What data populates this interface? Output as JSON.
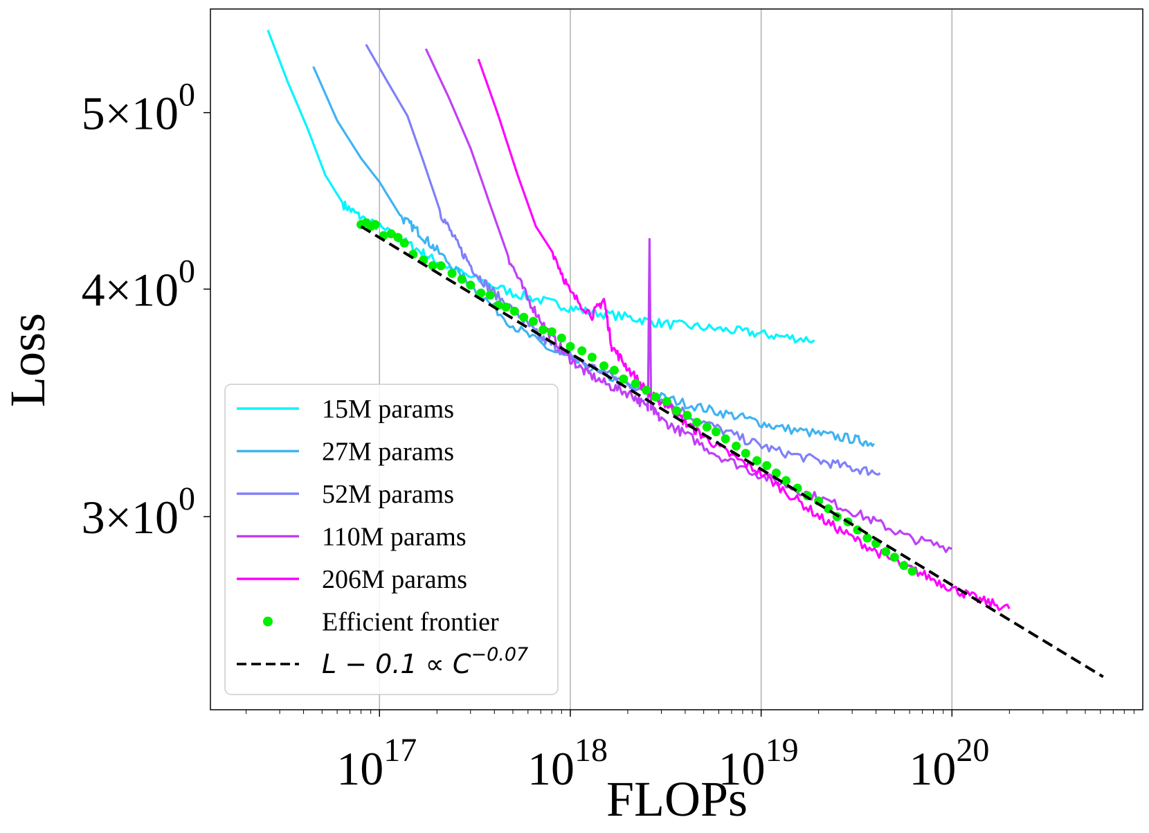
{
  "chart_data": {
    "type": "line",
    "xlabel": "FLOPs",
    "ylabel": "Loss",
    "x_scale": "log",
    "y_scale": "log",
    "xlim": [
      1.3e+16,
      1e+21
    ],
    "ylim": [
      2.35,
      5.7
    ],
    "grid": "vertical major",
    "legend_position": "lower-left",
    "x_ticks": [
      {
        "value": 1e+17,
        "base": "10",
        "exp": "17"
      },
      {
        "value": 1e+18,
        "base": "10",
        "exp": "18"
      },
      {
        "value": 1e+19,
        "base": "10",
        "exp": "19"
      },
      {
        "value": 1e+20,
        "base": "10",
        "exp": "20"
      }
    ],
    "y_ticks": [
      {
        "value": 5,
        "mantissa": "5",
        "times": "×",
        "base": "10",
        "exp": "0"
      },
      {
        "value": 4,
        "mantissa": "4",
        "times": "×",
        "base": "10",
        "exp": "0"
      },
      {
        "value": 3,
        "mantissa": "3",
        "times": "×",
        "base": "10",
        "exp": "0"
      }
    ],
    "series": [
      {
        "name": "15M params",
        "color": "#00f5ff",
        "x": [
          2.6e+16,
          3.3e+16,
          4.2e+16,
          5.2e+16,
          6.5e+16,
          8e+16,
          1.1e+17,
          1.5e+17,
          2e+17,
          3e+17,
          5e+17,
          8e+17,
          1.2e+18,
          2e+18,
          3e+18,
          5e+18,
          8e+18,
          1.2e+19,
          1.9e+19
        ],
        "y": [
          5.55,
          5.2,
          4.9,
          4.62,
          4.45,
          4.38,
          4.3,
          4.22,
          4.14,
          4.06,
          3.98,
          3.93,
          3.89,
          3.86,
          3.83,
          3.81,
          3.79,
          3.77,
          3.75
        ]
      },
      {
        "name": "27M params",
        "color": "#3fb3f2",
        "x": [
          4.5e+16,
          6e+16,
          8e+16,
          1e+17,
          1.3e+17,
          1.6e+17,
          2e+17,
          3e+17,
          5e+17,
          8e+17,
          1.2e+18,
          2e+18,
          3e+18,
          5e+18,
          8e+18,
          1.2e+19,
          2e+19,
          3e+19,
          3.9e+19
        ],
        "y": [
          5.3,
          4.95,
          4.72,
          4.58,
          4.38,
          4.3,
          4.2,
          4.02,
          3.82,
          3.7,
          3.63,
          3.54,
          3.49,
          3.44,
          3.4,
          3.36,
          3.33,
          3.31,
          3.29
        ]
      },
      {
        "name": "52M params",
        "color": "#7f80f8",
        "x": [
          8.5e+16,
          1.1e+17,
          1.4e+17,
          1.7e+17,
          2.1e+17,
          2.6e+17,
          3.2e+17,
          4e+17,
          5.5e+17,
          7e+17,
          9e+17,
          1.2e+18,
          2e+18,
          3e+18,
          5e+18,
          8e+18,
          1.2e+19,
          2e+19,
          3e+19,
          4.2e+19
        ],
        "y": [
          5.45,
          5.2,
          4.98,
          4.7,
          4.4,
          4.22,
          4.08,
          3.98,
          3.86,
          3.76,
          3.7,
          3.64,
          3.55,
          3.48,
          3.38,
          3.31,
          3.26,
          3.22,
          3.19,
          3.17
        ]
      },
      {
        "name": "110M params",
        "color": "#bf40f6",
        "x": [
          1.75e+17,
          2.3e+17,
          3e+17,
          3.8e+17,
          4.8e+17,
          6e+17,
          7.5e+17,
          9.5e+17,
          1.2e+18,
          1.6e+18,
          2.1e+18,
          2.55e+18,
          2.6e+18,
          2.65e+18,
          3e+18,
          4e+18,
          6e+18,
          1e+19,
          1.6e+19,
          2.6e+19,
          4e+19,
          6e+19,
          1e+20
        ],
        "y": [
          5.42,
          5.1,
          4.78,
          4.45,
          4.15,
          3.95,
          3.8,
          3.68,
          3.6,
          3.54,
          3.5,
          3.44,
          4.25,
          3.44,
          3.39,
          3.33,
          3.24,
          3.16,
          3.1,
          3.04,
          2.98,
          2.92,
          2.88
        ]
      },
      {
        "name": "206M params",
        "color": "#ff00ff",
        "x": [
          3.3e+17,
          4.2e+17,
          5.3e+17,
          6.6e+17,
          8.2e+17,
          1e+18,
          1.3e+18,
          1.5e+18,
          1.65e+18,
          2e+18,
          2.6e+18,
          3.3e+18,
          4e+18,
          5e+18,
          7e+18,
          1e+19,
          1.5e+19,
          2.2e+19,
          3.2e+19,
          4.8e+19,
          7e+19,
          1e+20,
          1.4e+20,
          2e+20
        ],
        "y": [
          5.35,
          4.98,
          4.62,
          4.33,
          4.18,
          3.98,
          3.87,
          3.95,
          3.72,
          3.62,
          3.5,
          3.45,
          3.38,
          3.32,
          3.24,
          3.17,
          3.07,
          2.98,
          2.91,
          2.84,
          2.79,
          2.74,
          2.7,
          2.67
        ]
      }
    ],
    "frontier": {
      "name": "Efficient frontier",
      "color": "#00ee00",
      "x": [
        8e+16,
        8.5e+16,
        9e+16,
        9.5e+16,
        1.05e+17,
        1.15e+17,
        1.25e+17,
        1.35e+17,
        1.5e+17,
        1.7e+17,
        1.9e+17,
        2.1e+17,
        2.4e+17,
        2.7e+17,
        3e+17,
        3.4e+17,
        3.8e+17,
        4.2e+17,
        4.6e+17,
        5.1e+17,
        5.7e+17,
        6.4e+17,
        7.2e+17,
        8e+17,
        9e+17,
        1e+18,
        1.15e+18,
        1.3e+18,
        1.5e+18,
        1.7e+18,
        1.9e+18,
        2.2e+18,
        2.5e+18,
        2.8e+18,
        3.2e+18,
        3.6e+18,
        4.1e+18,
        4.6e+18,
        5.2e+18,
        5.8e+18,
        6.5e+18,
        7.4e+18,
        8.3e+18,
        9.5e+18,
        1.07e+19,
        1.2e+19,
        1.35e+19,
        1.55e+19,
        1.75e+19,
        2e+19,
        2.25e+19,
        2.5e+19,
        2.85e+19,
        3.2e+19,
        3.6e+19,
        4e+19,
        4.5e+19,
        5e+19,
        5.6e+19,
        6.2e+19
      ],
      "y": [
        4.34,
        4.35,
        4.33,
        4.34,
        4.28,
        4.29,
        4.27,
        4.24,
        4.18,
        4.15,
        4.12,
        4.12,
        4.08,
        4.05,
        4.02,
        3.98,
        3.97,
        3.92,
        3.91,
        3.89,
        3.86,
        3.84,
        3.8,
        3.79,
        3.76,
        3.72,
        3.7,
        3.67,
        3.63,
        3.61,
        3.57,
        3.55,
        3.52,
        3.49,
        3.47,
        3.43,
        3.41,
        3.38,
        3.36,
        3.34,
        3.31,
        3.28,
        3.25,
        3.22,
        3.2,
        3.17,
        3.14,
        3.11,
        3.08,
        3.06,
        3.03,
        3.0,
        2.98,
        2.95,
        2.92,
        2.9,
        2.87,
        2.85,
        2.82,
        2.8
      ]
    },
    "fit_line": {
      "name": "L − 0.1 ∝ C",
      "exponent": "−0.07",
      "color": "#000000",
      "style": "dashed",
      "x": [
        8e+16,
        6.2e+20
      ],
      "y": [
        4.33,
        2.45
      ]
    }
  }
}
